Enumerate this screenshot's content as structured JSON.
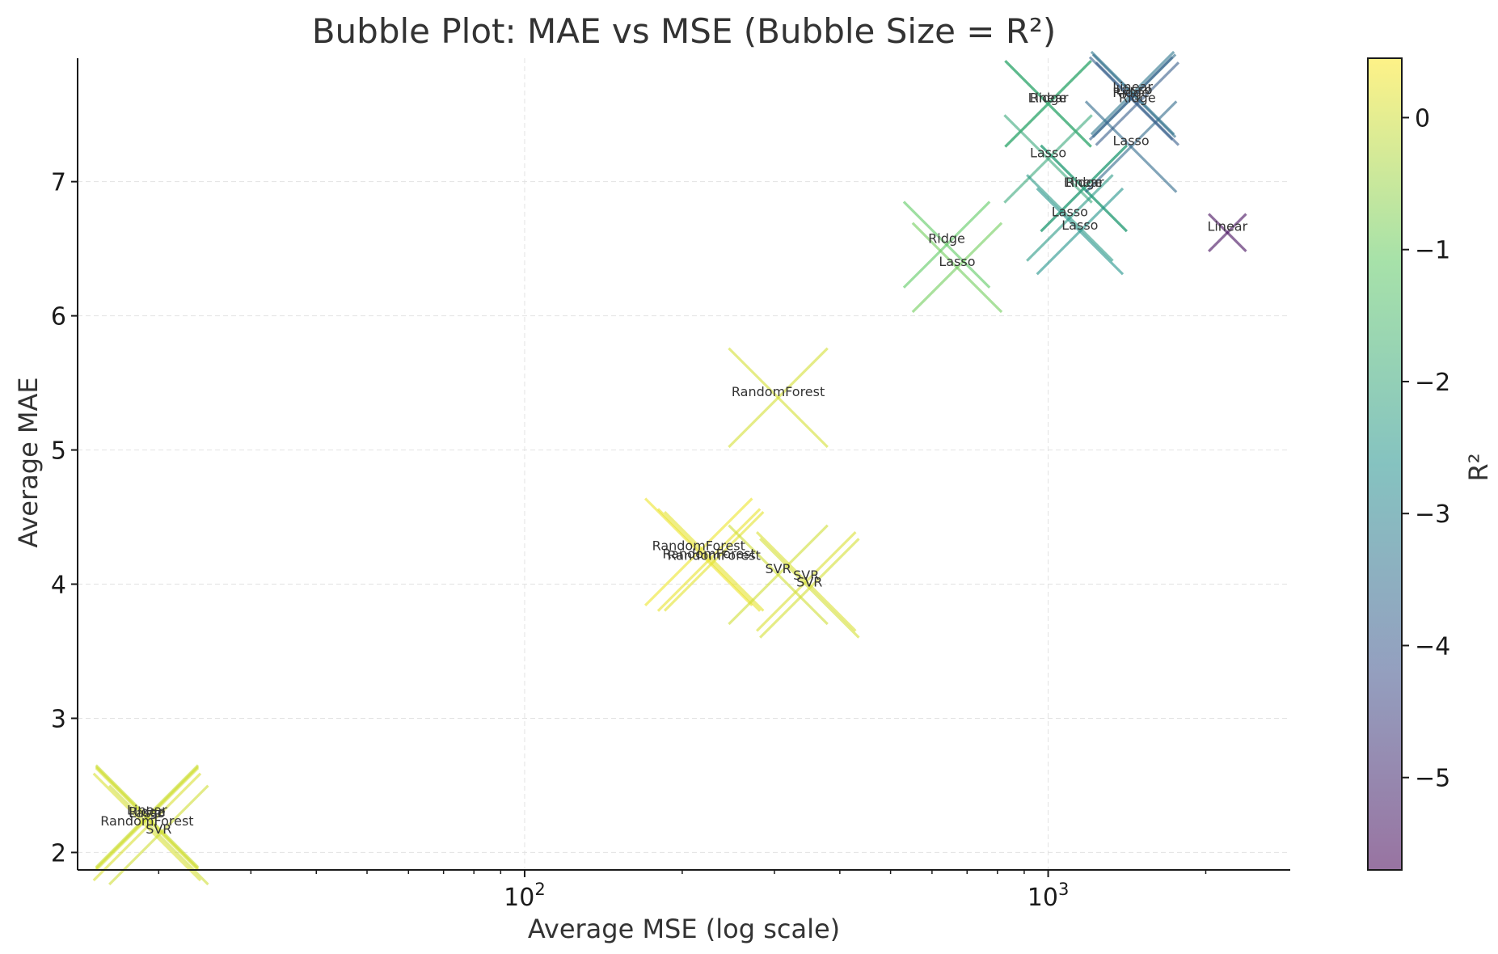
{
  "chart_data": {
    "type": "scatter",
    "title": "Bubble Plot: MAE vs MSE (Bubble Size = R²)",
    "xlabel": "Average MSE (log scale)",
    "ylabel": "Average MAE",
    "xscale": "log",
    "xlim": [
      14,
      2900
    ],
    "ylim": [
      1.87,
      7.92
    ],
    "x_ticks": [
      {
        "base": "10",
        "exp": "2",
        "value": 100
      },
      {
        "base": "10",
        "exp": "3",
        "value": 1000
      }
    ],
    "x_minor_ticks": [
      20,
      30,
      40,
      50,
      60,
      70,
      80,
      90,
      200,
      300,
      400,
      500,
      600,
      700,
      800,
      900,
      2000
    ],
    "y_ticks": [
      2,
      3,
      4,
      5,
      6,
      7
    ],
    "grid": true,
    "marker": "x",
    "colormap": "viridis",
    "colorbar": {
      "label": "R²",
      "range": [
        -5.7,
        0.45
      ],
      "ticks": [
        0,
        -1,
        -2,
        -3,
        -4,
        -5
      ],
      "tick_labels": [
        "0",
        "−1",
        "−2",
        "−3",
        "−4",
        "−5"
      ]
    },
    "points": [
      {
        "label": "Linear",
        "x": 2200,
        "y": 6.62,
        "r2": -5.5,
        "size": 0.12
      },
      {
        "label": "Lasso",
        "x": 1000,
        "y": 7.17,
        "r2": -2.0,
        "size": 0.43
      },
      {
        "label": "Ridge",
        "x": 1000,
        "y": 7.58,
        "r2": -1.8,
        "size": 0.42
      },
      {
        "label": "Linear",
        "x": 1000,
        "y": 7.58,
        "r2": -1.9,
        "size": 0.42
      },
      {
        "label": "Ridge",
        "x": 1170,
        "y": 6.95,
        "r2": -2.0,
        "size": 0.42
      },
      {
        "label": "Linear",
        "x": 1170,
        "y": 6.95,
        "r2": -2.2,
        "size": 0.42
      },
      {
        "label": "Lasso",
        "x": 1100,
        "y": 6.73,
        "r2": -2.4,
        "size": 0.42
      },
      {
        "label": "Lasso",
        "x": 1150,
        "y": 6.63,
        "r2": -2.6,
        "size": 0.42
      },
      {
        "label": "Lasso",
        "x": 1440,
        "y": 7.26,
        "r2": -3.6,
        "size": 0.45
      },
      {
        "label": "Linear",
        "x": 1450,
        "y": 7.66,
        "r2": -3.3,
        "size": 0.4
      },
      {
        "label": "Lasso",
        "x": 1460,
        "y": 7.64,
        "r2": -3.5,
        "size": 0.4
      },
      {
        "label": "Ridge",
        "x": 1440,
        "y": 7.62,
        "r2": -3.8,
        "size": 0.4
      },
      {
        "label": "Ridge",
        "x": 1480,
        "y": 7.58,
        "r2": -3.9,
        "size": 0.4
      },
      {
        "label": "Ridge",
        "x": 640,
        "y": 6.53,
        "r2": -1.1,
        "size": 0.42
      },
      {
        "label": "Lasso",
        "x": 670,
        "y": 6.36,
        "r2": -0.9,
        "size": 0.44
      },
      {
        "label": "RandomForest",
        "x": 305,
        "y": 5.39,
        "r2": 0.05,
        "size": 0.5
      },
      {
        "label": "RandomForest",
        "x": 215,
        "y": 4.24,
        "r2": 0.3,
        "size": 0.55
      },
      {
        "label": "RandomForest",
        "x": 225,
        "y": 4.18,
        "r2": 0.25,
        "size": 0.52
      },
      {
        "label": "RandomForest",
        "x": 230,
        "y": 4.17,
        "r2": 0.2,
        "size": 0.5
      },
      {
        "label": "SVR",
        "x": 305,
        "y": 4.07,
        "r2": 0.0,
        "size": 0.5
      },
      {
        "label": "SVR",
        "x": 345,
        "y": 4.02,
        "r2": 0.1,
        "size": 0.5
      },
      {
        "label": "SVR",
        "x": 350,
        "y": 3.97,
        "r2": 0.05,
        "size": 0.5
      },
      {
        "label": "Linear",
        "x": 19,
        "y": 2.27,
        "r2": -0.05,
        "size": 0.52
      },
      {
        "label": "Ridge",
        "x": 19,
        "y": 2.26,
        "r2": 0.0,
        "size": 0.52
      },
      {
        "label": "Lasso",
        "x": 19,
        "y": 2.25,
        "r2": 0.05,
        "size": 0.52
      },
      {
        "label": "RandomForest",
        "x": 19,
        "y": 2.19,
        "r2": 0.1,
        "size": 0.55
      },
      {
        "label": "SVR",
        "x": 20,
        "y": 2.13,
        "r2": 0.0,
        "size": 0.5
      }
    ]
  }
}
